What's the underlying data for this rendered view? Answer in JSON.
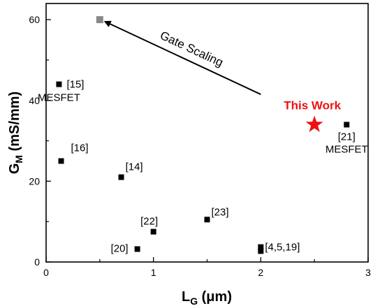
{
  "chart_data": {
    "type": "scatter",
    "xlabel": {
      "main": "L",
      "sub": "G",
      "unit": " (μm)"
    },
    "ylabel": {
      "main": "G",
      "sub": "M",
      "unit": " (mS/mm)"
    },
    "xlim": [
      0,
      3
    ],
    "ylim": [
      0,
      64
    ],
    "xticks": [
      0,
      1,
      2,
      3
    ],
    "yticks": [
      0,
      20,
      40,
      60
    ],
    "grid": false,
    "points": [
      {
        "x": 0.12,
        "y": 44,
        "label": "[15]",
        "note": "MESFET",
        "marker": "square",
        "color": "#000000"
      },
      {
        "x": 0.14,
        "y": 25,
        "label": "[16]",
        "marker": "square",
        "color": "#000000"
      },
      {
        "x": 0.7,
        "y": 21,
        "label": "[14]",
        "marker": "square",
        "color": "#000000"
      },
      {
        "x": 1.0,
        "y": 7.5,
        "label": "[22]",
        "marker": "square",
        "color": "#000000"
      },
      {
        "x": 0.85,
        "y": 3.2,
        "label": "[20]",
        "marker": "square",
        "color": "#000000"
      },
      {
        "x": 1.5,
        "y": 10.5,
        "label": "[23]",
        "marker": "square",
        "color": "#000000"
      },
      {
        "x": 2.0,
        "y": 2.7,
        "label": "",
        "marker": "square",
        "color": "#000000"
      },
      {
        "x": 2.0,
        "y": 3.7,
        "label": "[4,5,19]",
        "marker": "square",
        "color": "#000000"
      },
      {
        "x": 2.8,
        "y": 34,
        "label": "[21]",
        "note": "MESFET",
        "marker": "square",
        "color": "#000000"
      },
      {
        "x": 2.5,
        "y": 34,
        "label": "This Work",
        "marker": "star",
        "color": "#ee1111"
      },
      {
        "x": 0.5,
        "y": 60,
        "label": "",
        "marker": "square",
        "color": "#888888"
      }
    ],
    "annotations": [
      {
        "text": "Gate Scaling",
        "arrow_from": [
          2.0,
          41.5
        ],
        "arrow_to": [
          0.55,
          59.5
        ]
      }
    ]
  }
}
